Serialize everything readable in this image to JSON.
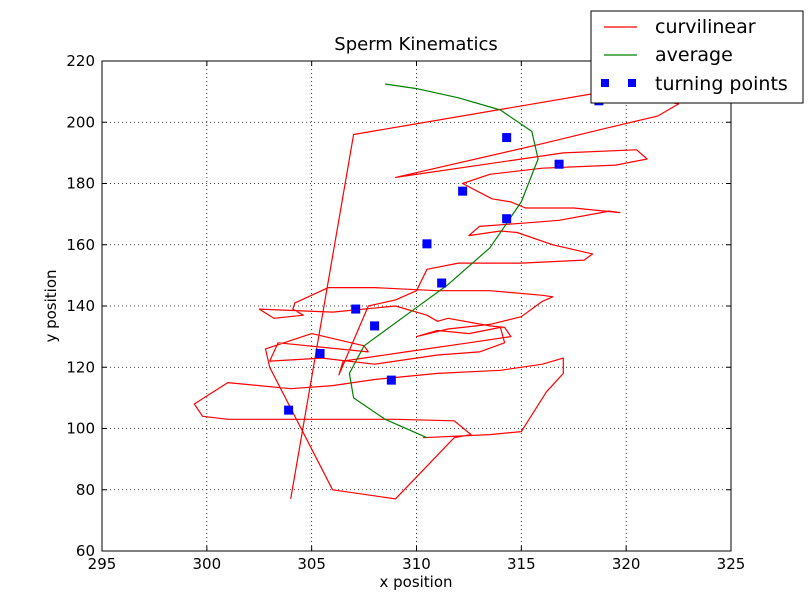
{
  "chart_data": {
    "type": "line",
    "title": "Sperm Kinematics",
    "xlabel": "x position",
    "ylabel": "y position",
    "xlim": [
      295,
      325
    ],
    "ylim": [
      60,
      220
    ],
    "x_ticks": [
      295,
      300,
      305,
      310,
      315,
      320,
      325
    ],
    "y_ticks": [
      60,
      80,
      100,
      120,
      140,
      160,
      180,
      200,
      220
    ],
    "grid": true,
    "legend_position": "top-right",
    "colors": {
      "curvilinear": "#ff0000",
      "average": "#008000",
      "turning_points": "#0000ff"
    },
    "series": [
      {
        "name": "curvilinear",
        "style": "line",
        "x": [
          310.3,
          313.5,
          315.0,
          316.2,
          317.0,
          317.0,
          316.0,
          314.0,
          311.0,
          308.0,
          306.0,
          304.0,
          301.0,
          299.4,
          299.8,
          301.0,
          303.0,
          306.0,
          309.0,
          311.8,
          312.6,
          311.8,
          309.0,
          306.0,
          303.0,
          302.8,
          305.0,
          307.5,
          307.7,
          303.4,
          303.0,
          305.5,
          308.0,
          311.0,
          313.0,
          314.2,
          314.0,
          312.5,
          311.0,
          310.0,
          311.5,
          313.5,
          315.0,
          316.0,
          316.5,
          316.0,
          313.5,
          311.0,
          308.0,
          305.8,
          304.2,
          304.1,
          304.6,
          303.2,
          302.5,
          306.0,
          309.0,
          310.5,
          311.0,
          311.5,
          313.5,
          314.2,
          314.5,
          312.5,
          309.5,
          306.5,
          306.3,
          307.7,
          309.0,
          310.0,
          310.5,
          312.0,
          315.0,
          318.0,
          318.4,
          316.5,
          314.8,
          314.0,
          312.5,
          313.0,
          315.0,
          316.8,
          319.2,
          319.7,
          317.5,
          315.2,
          314.5,
          313.6,
          312.2,
          313.5,
          316.0,
          319.5,
          321.0,
          320.5,
          317.0,
          309.0,
          316.0,
          319.0,
          321.5,
          322.5,
          321.0,
          319.0,
          307.0,
          304.0
        ],
        "y": [
          97.0,
          98.0,
          99.0,
          112.0,
          118.0,
          123.0,
          121.0,
          119.0,
          118.0,
          116.0,
          114.0,
          113.0,
          115.0,
          108.0,
          104.0,
          103.0,
          103.0,
          103.0,
          103.0,
          102.5,
          98.0,
          97.0,
          77.0,
          80.0,
          120.0,
          126.0,
          131.0,
          127.0,
          125.0,
          128.0,
          122.0,
          123.0,
          121.0,
          124.0,
          125.0,
          128.0,
          133.0,
          131.0,
          132.0,
          130.0,
          132.5,
          134.0,
          136.5,
          141.5,
          143.0,
          143.5,
          145.0,
          145.0,
          146.0,
          146.0,
          141.0,
          139.0,
          137.0,
          136.0,
          139.0,
          138.0,
          140.0,
          137.0,
          135.0,
          136.0,
          133.5,
          133.0,
          130.0,
          128.0,
          125.0,
          122.0,
          117.5,
          140.0,
          142.0,
          145.0,
          152.0,
          154.0,
          154.0,
          155.0,
          157.0,
          160.0,
          164.0,
          164.5,
          163.0,
          166.0,
          167.0,
          168.0,
          171.0,
          170.5,
          172.0,
          172.0,
          174.0,
          175.0,
          180.0,
          183.0,
          185.0,
          186.0,
          188.0,
          191.0,
          190.0,
          182.0,
          193.0,
          198.0,
          202.0,
          206.0,
          208.0,
          210.0,
          196.0,
          77.0
        ]
      },
      {
        "name": "average",
        "style": "line",
        "x": [
          310.5,
          308.5,
          307.0,
          306.8,
          307.5,
          309.5,
          311.5,
          313.5,
          315.0,
          315.8,
          315.5,
          314.0,
          312.0,
          310.0,
          308.5
        ],
        "y": [
          97.0,
          103.0,
          110.0,
          118.0,
          127.0,
          137.0,
          147.0,
          159.0,
          174.0,
          188.0,
          197.0,
          204.0,
          208.0,
          211.0,
          212.5
        ]
      },
      {
        "name": "turning points",
        "style": "markers",
        "x": [
          303.9,
          305.4,
          308.8,
          308.0,
          307.1,
          311.2,
          310.5,
          312.2,
          314.3,
          314.3,
          316.8,
          318.7
        ],
        "y": [
          106.0,
          124.5,
          115.8,
          133.5,
          139.0,
          147.5,
          160.3,
          177.5,
          168.5,
          195.0,
          186.3,
          207.0
        ]
      }
    ]
  }
}
